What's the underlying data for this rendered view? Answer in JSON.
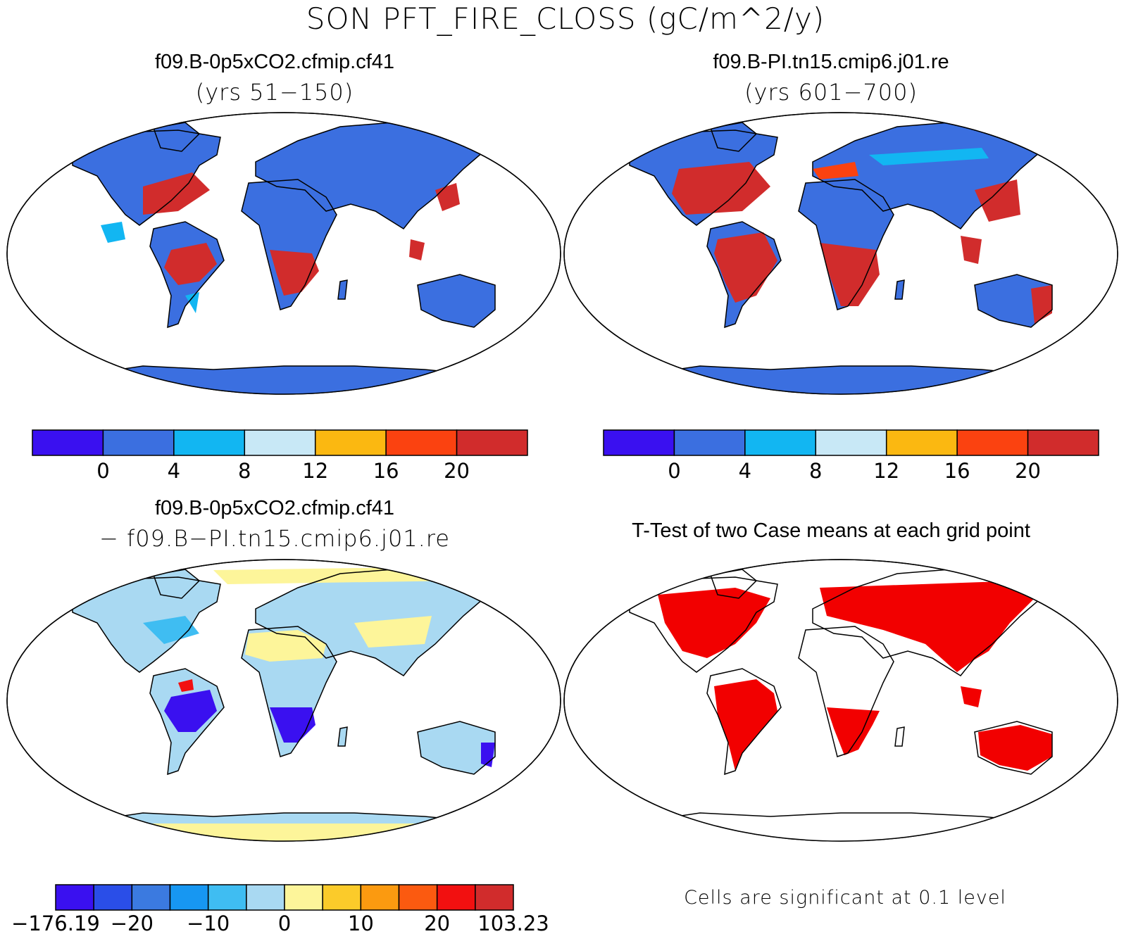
{
  "figure": {
    "title": "SON PFT_FIRE_CLOSS (gC/m^2/y)"
  },
  "panels": [
    {
      "id": "case1",
      "title": "f09.B-0p5xCO2.cfmip.cf41",
      "subtitle": "(yrs 51−150)",
      "colorbar": {
        "colors": [
          "#3a10f0",
          "#3b6fe0",
          "#12b6f2",
          "#c8e8f6",
          "#fbb811",
          "#fb4210",
          "#d12c2c"
        ],
        "tick_labels": [
          "0",
          "4",
          "8",
          "12",
          "16",
          "20"
        ]
      }
    },
    {
      "id": "case2",
      "title": "f09.B-PI.tn15.cmip6.j01.re",
      "subtitle": "(yrs 601−700)",
      "colorbar": {
        "colors": [
          "#3a10f0",
          "#3b6fe0",
          "#12b6f2",
          "#c8e8f6",
          "#fbb811",
          "#fb4210",
          "#d12c2c"
        ],
        "tick_labels": [
          "0",
          "4",
          "8",
          "12",
          "16",
          "20"
        ]
      }
    },
    {
      "id": "difference",
      "title": "f09.B-0p5xCO2.cfmip.cf41",
      "subtitle": "− f09.B−PI.tn15.cmip6.j01.re",
      "colorbar": {
        "colors": [
          "#3a10f0",
          "#2a4ee8",
          "#3b7ae0",
          "#1797f2",
          "#3fbdf2",
          "#a9d9f2",
          "#fdf59a",
          "#fbcb2a",
          "#fb9a10",
          "#fb5a10",
          "#f21010",
          "#d12c2c"
        ],
        "tick_labels": [
          "−176.19",
          "−20",
          "−10",
          "0",
          "10",
          "20",
          "103.23"
        ]
      }
    },
    {
      "id": "ttest",
      "title": "T-Test of two Case means at each grid point",
      "note": "Cells are significant at 0.1 level"
    }
  ]
}
